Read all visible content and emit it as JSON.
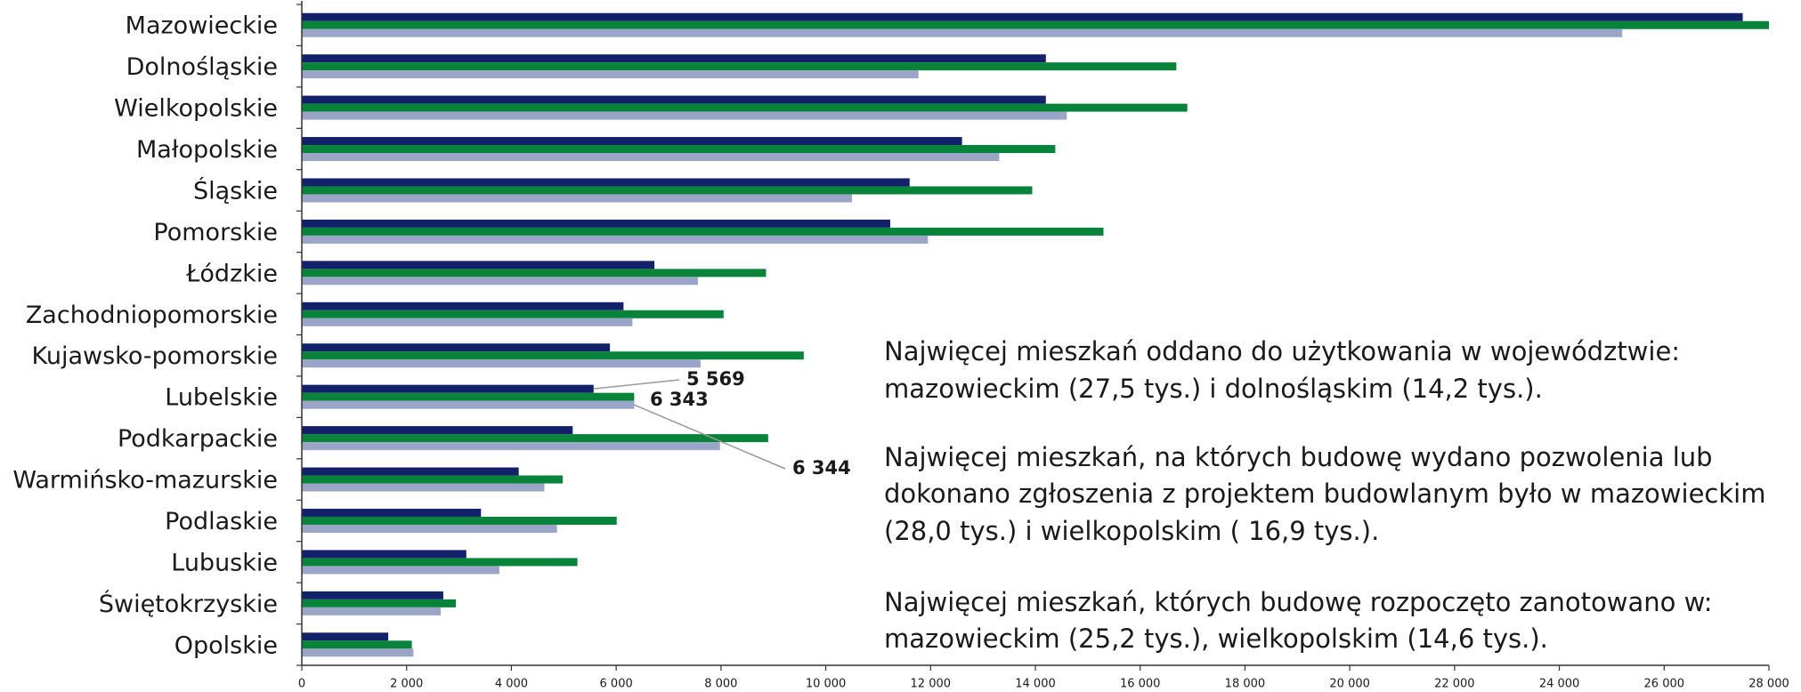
{
  "chart_data": {
    "type": "bar",
    "orientation": "horizontal",
    "categories": [
      "Mazowieckie",
      "Dolnośląskie",
      "Wielkopolskie",
      "Małopolskie",
      "Śląskie",
      "Pomorskie",
      "Łódzkie",
      "Zachodniopomorskie",
      "Kujawsko-pomorskie",
      "Lubelskie",
      "Podkarpackie",
      "Warmińsko-mazurskie",
      "Podlaskie",
      "Lubuskie",
      "Świętokrzyskie",
      "Opolskie"
    ],
    "series": [
      {
        "color": "#13216b",
        "values": [
          27500,
          14200,
          14200,
          12600,
          11600,
          11230,
          6730,
          6140,
          5880,
          5569,
          5170,
          4140,
          3420,
          3140,
          2700,
          1650
        ],
        "value_labels": [
          null,
          null,
          null,
          null,
          null,
          null,
          null,
          null,
          null,
          "5 569",
          null,
          null,
          null,
          null,
          null,
          null
        ]
      },
      {
        "color": "#07843a",
        "values": [
          28000,
          16690,
          16900,
          14380,
          13940,
          15300,
          8860,
          8050,
          9580,
          6343,
          8900,
          4980,
          6010,
          5260,
          2940,
          2100
        ],
        "value_labels": [
          null,
          null,
          null,
          null,
          null,
          null,
          null,
          null,
          null,
          "6 343",
          null,
          null,
          null,
          null,
          null,
          null
        ]
      },
      {
        "color": "#9aa5c8",
        "values": [
          25200,
          11770,
          14600,
          13310,
          10500,
          11950,
          7560,
          6310,
          7610,
          6344,
          7980,
          4630,
          4870,
          3770,
          2650,
          2130
        ],
        "value_labels": [
          null,
          null,
          null,
          null,
          null,
          null,
          null,
          null,
          null,
          "6 344",
          null,
          null,
          null,
          null,
          null,
          null
        ]
      }
    ],
    "xlim": [
      0,
      28000
    ],
    "xticks": [
      0,
      {
        "value": 2000,
        "label": "2 000"
      },
      {
        "value": 4000,
        "label": "4 000"
      },
      {
        "value": 6000,
        "label": "6 000"
      },
      {
        "value": 8000,
        "label": "8 000"
      },
      {
        "value": 10000,
        "label": "10 000"
      },
      {
        "value": 12000,
        "label": "12 000"
      },
      {
        "value": 14000,
        "label": "14 000"
      },
      {
        "value": 16000,
        "label": "16 000"
      },
      {
        "value": 18000,
        "label": "18 000"
      },
      {
        "value": 20000,
        "label": "20 000"
      },
      {
        "value": 22000,
        "label": "22 000"
      },
      {
        "value": 24000,
        "label": "24 000"
      },
      {
        "value": 26000,
        "label": "26 000"
      },
      {
        "value": 28000,
        "label": "28 000"
      }
    ],
    "annotations": [
      [
        "Najwięcej mieszkań oddano do użytkowania w województwie:",
        "mazowieckim (27,5 tys.) i dolnośląskim (14,2 tys.)."
      ],
      [
        "Najwięcej mieszkań, na których budowę wydano pozwolenia lub",
        "dokonano zgłoszenia z projektem budowlanym było w mazowieckim",
        "(28,0 tys.)  i wielkopolskim ( 16,9 tys.)."
      ],
      [
        "Najwięcej mieszkań, których budowę rozpoczęto zanotowano w:",
        "mazowieckim (25,2 tys.), wielkopolskim (14,6 tys.)."
      ]
    ]
  }
}
